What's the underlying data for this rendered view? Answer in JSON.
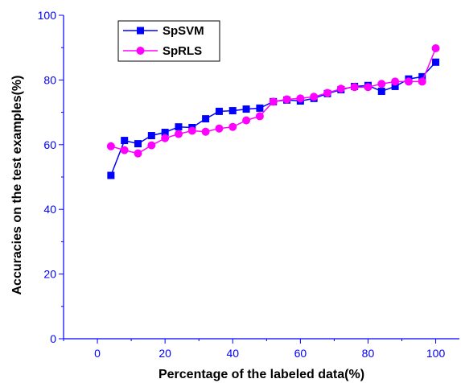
{
  "chart_data": {
    "type": "line",
    "title": "",
    "xlabel": "Percentage of the labeled data(%)",
    "ylabel": "Accuracies on the test examples(%)",
    "xlim": [
      -10,
      107
    ],
    "ylim": [
      0,
      100
    ],
    "x_ticks": [
      "0",
      "20",
      "40",
      "60",
      "80",
      "100"
    ],
    "y_ticks": [
      "0",
      "20",
      "40",
      "60",
      "80",
      "100"
    ],
    "grid": false,
    "legend_position": "top-left",
    "x": [
      4,
      8,
      12,
      16,
      20,
      24,
      28,
      32,
      36,
      40,
      44,
      48,
      52,
      56,
      60,
      64,
      68,
      72,
      76,
      80,
      84,
      88,
      92,
      96,
      100
    ],
    "series": [
      {
        "name": "SpSVM",
        "color": "#0000ff",
        "marker": "square",
        "values": [
          50.5,
          61.3,
          60.3,
          62.8,
          63.8,
          65.5,
          65.3,
          68.0,
          70.3,
          70.5,
          71.0,
          71.3,
          73.3,
          73.8,
          73.5,
          74.3,
          75.8,
          77.0,
          78.0,
          78.3,
          76.5,
          78.0,
          80.3,
          81.0,
          85.5
        ]
      },
      {
        "name": "SpRLS",
        "color": "#ff00ff",
        "marker": "circle",
        "values": [
          59.5,
          58.3,
          57.3,
          59.8,
          62.0,
          63.3,
          64.3,
          64.0,
          65.0,
          65.5,
          67.5,
          68.8,
          73.3,
          74.0,
          74.3,
          74.8,
          76.0,
          77.3,
          77.8,
          77.8,
          78.8,
          79.5,
          79.5,
          79.5,
          89.8
        ]
      }
    ]
  }
}
